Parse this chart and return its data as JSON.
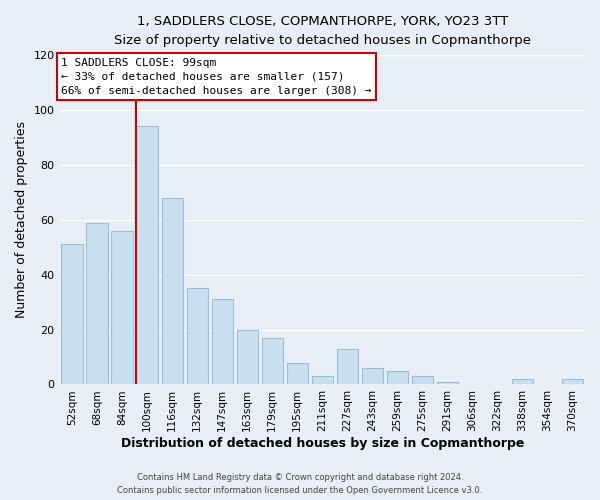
{
  "title": "1, SADDLERS CLOSE, COPMANTHORPE, YORK, YO23 3TT",
  "subtitle": "Size of property relative to detached houses in Copmanthorpe",
  "xlabel": "Distribution of detached houses by size in Copmanthorpe",
  "ylabel": "Number of detached properties",
  "bar_color": "#c8dff0",
  "bar_edge_color": "#9bbfd8",
  "categories": [
    "52sqm",
    "68sqm",
    "84sqm",
    "100sqm",
    "116sqm",
    "132sqm",
    "147sqm",
    "163sqm",
    "179sqm",
    "195sqm",
    "211sqm",
    "227sqm",
    "243sqm",
    "259sqm",
    "275sqm",
    "291sqm",
    "306sqm",
    "322sqm",
    "338sqm",
    "354sqm",
    "370sqm"
  ],
  "values": [
    51,
    59,
    56,
    94,
    68,
    35,
    31,
    20,
    17,
    8,
    3,
    13,
    6,
    5,
    3,
    1,
    0,
    0,
    2,
    0,
    2
  ],
  "ylim": [
    0,
    120
  ],
  "yticks": [
    0,
    20,
    40,
    60,
    80,
    100,
    120
  ],
  "annotation_box_text": "1 SADDLERS CLOSE: 99sqm\n← 33% of detached houses are smaller (157)\n66% of semi-detached houses are larger (308) →",
  "vline_color": "#cc0000",
  "box_edge_color": "#cc0000",
  "background_color": "#e8eef5",
  "grid_color": "#ffffff",
  "footer_line1": "Contains HM Land Registry data © Crown copyright and database right 2024.",
  "footer_line2": "Contains public sector information licensed under the Open Government Licence v3.0."
}
